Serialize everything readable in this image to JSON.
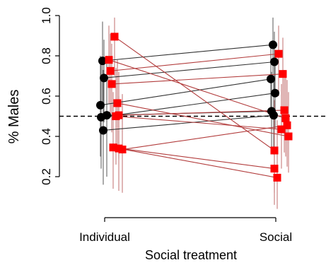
{
  "chart_data": {
    "type": "scatter",
    "xlabel": "Social treatment",
    "ylabel": "% Males",
    "categories": [
      "Individual",
      "Social"
    ],
    "ylim": [
      0.1,
      1.0
    ],
    "yticks": [
      "0.2",
      "0.4",
      "0.6",
      "0.8",
      "1.0"
    ],
    "reference_line": 0.5,
    "grid": false,
    "series": [
      {
        "marker": "circle",
        "color": "#000000",
        "line_color": "#333333",
        "pairs": [
          {
            "individual": 0.775,
            "social": 0.855,
            "ci_individual": [
              0.55,
              0.97
            ],
            "ci_social": [
              0.7,
              0.99
            ]
          },
          {
            "individual": 0.69,
            "social": 0.77,
            "ci_individual": [
              0.47,
              0.88
            ],
            "ci_social": [
              0.6,
              0.92
            ]
          },
          {
            "individual": 0.555,
            "social": 0.685,
            "ci_individual": [
              0.3,
              0.8
            ],
            "ci_social": [
              0.52,
              0.86
            ]
          },
          {
            "individual": 0.495,
            "social": 0.615,
            "ci_individual": [
              0.24,
              0.76
            ],
            "ci_social": [
              0.44,
              0.82
            ]
          },
          {
            "individual": 0.505,
            "social": 0.525,
            "ci_individual": [
              0.2,
              0.8
            ],
            "ci_social": [
              0.34,
              0.72
            ]
          },
          {
            "individual": 0.43,
            "social": 0.505,
            "ci_individual": [
              0.16,
              0.73
            ],
            "ci_social": [
              0.31,
              0.7
            ]
          }
        ]
      },
      {
        "marker": "square",
        "color": "#ff0000",
        "line_color": "#b23c3c",
        "pairs": [
          {
            "individual": 0.895,
            "social": 0.33,
            "ci_individual": [
              0.7,
              0.99
            ],
            "ci_social": [
              0.12,
              0.58
            ]
          },
          {
            "individual": 0.78,
            "social": 0.49,
            "ci_individual": [
              0.56,
              0.95
            ],
            "ci_social": [
              0.3,
              0.72
            ]
          },
          {
            "individual": 0.725,
            "social": 0.81,
            "ci_individual": [
              0.5,
              0.91
            ],
            "ci_social": [
              0.6,
              0.95
            ]
          },
          {
            "individual": 0.66,
            "social": 0.71,
            "ci_individual": [
              0.42,
              0.86
            ],
            "ci_social": [
              0.48,
              0.89
            ]
          },
          {
            "individual": 0.565,
            "social": 0.4,
            "ci_individual": [
              0.33,
              0.78
            ],
            "ci_social": [
              0.22,
              0.62
            ]
          },
          {
            "individual": 0.505,
            "social": 0.53,
            "ci_individual": [
              0.29,
              0.72
            ],
            "ci_social": [
              0.32,
              0.73
            ]
          },
          {
            "individual": 0.5,
            "social": 0.435,
            "ci_individual": [
              0.26,
              0.74
            ],
            "ci_social": [
              0.24,
              0.66
            ]
          },
          {
            "individual": 0.345,
            "social": 0.24,
            "ci_individual": [
              0.14,
              0.62
            ],
            "ci_social": [
              0.06,
              0.52
            ]
          },
          {
            "individual": 0.34,
            "social": 0.195,
            "ci_individual": [
              0.13,
              0.6
            ],
            "ci_social": [
              0.04,
              0.48
            ]
          },
          {
            "individual": 0.335,
            "social": 0.455,
            "ci_individual": [
              0.12,
              0.61
            ],
            "ci_social": [
              0.25,
              0.68
            ]
          }
        ]
      }
    ]
  }
}
